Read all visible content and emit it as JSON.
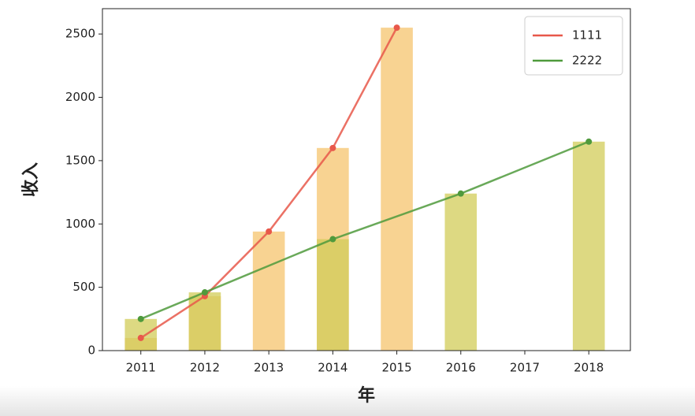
{
  "chart_data": {
    "type": "bar_line",
    "xlabel": "年",
    "ylabel": "收入",
    "xlim": [
      2010.4,
      2018.65
    ],
    "xticks": [
      2011,
      2012,
      2013,
      2014,
      2015,
      2016,
      2017,
      2018
    ],
    "ylim": [
      0,
      2700
    ],
    "yticks": [
      0,
      500,
      1000,
      1500,
      2000,
      2500
    ],
    "legend": "upper right",
    "series": [
      {
        "name": "1111",
        "color": "#e8584a",
        "bar_color": "#f5c46e",
        "x": [
          2011,
          2012,
          2013,
          2014,
          2015
        ],
        "values": [
          100,
          430,
          940,
          1600,
          2550
        ]
      },
      {
        "name": "2222",
        "color": "#4f9a3c",
        "bar_color": "#d2cc58",
        "x": [
          2011,
          2012,
          2014,
          2016,
          2018
        ],
        "values": [
          250,
          460,
          880,
          1240,
          1650
        ]
      }
    ]
  }
}
